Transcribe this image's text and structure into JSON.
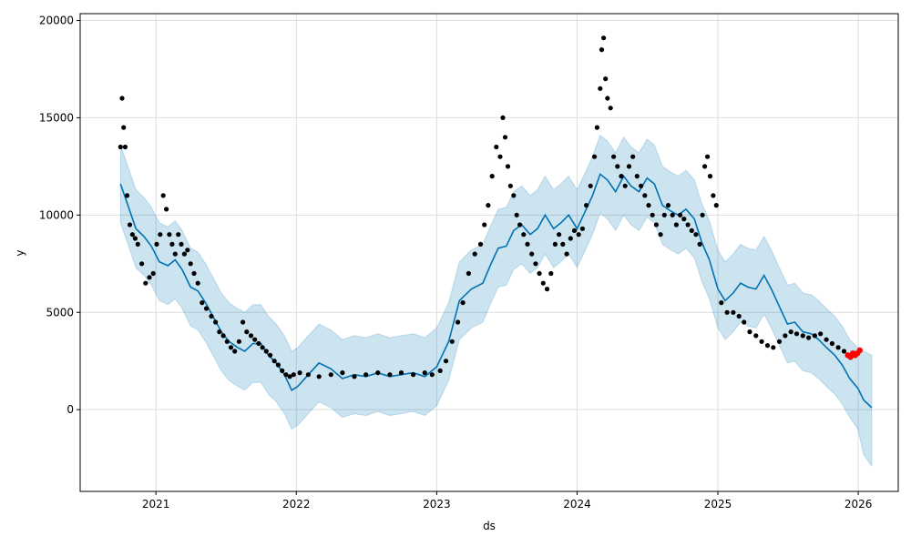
{
  "chart_data": {
    "type": "scatter",
    "title": "",
    "xlabel": "ds",
    "ylabel": "y",
    "xlim": [
      "2020-06-18",
      "2026-04-15"
    ],
    "ylim": [
      -4200,
      20350
    ],
    "grid": true,
    "x_ticks": [
      "2021-01-01",
      "2022-01-01",
      "2023-01-01",
      "2024-01-01",
      "2025-01-01",
      "2026-01-01"
    ],
    "x_tick_labels": [
      "2021",
      "2022",
      "2023",
      "2024",
      "2025",
      "2026"
    ],
    "y_ticks": [
      0,
      5000,
      10000,
      15000,
      20000
    ],
    "y_tick_labels": [
      "0",
      "5000",
      "10000",
      "15000",
      "20000"
    ],
    "colors": {
      "observed": "#000000",
      "recent": "#ff0000",
      "forecast_line": "#0072B2",
      "uncertainty_band": "#0072B2",
      "grid": "#dddddd"
    },
    "series": [
      {
        "role": "forecast",
        "x": [
          "2020-10-01",
          "2020-10-20",
          "2020-11-10",
          "2020-12-01",
          "2020-12-20",
          "2021-01-10",
          "2021-02-01",
          "2021-02-20",
          "2021-03-10",
          "2021-04-01",
          "2021-04-20",
          "2021-05-10",
          "2021-06-01",
          "2021-06-20",
          "2021-07-10",
          "2021-08-01",
          "2021-08-20",
          "2021-09-10",
          "2021-10-01",
          "2021-10-20",
          "2021-11-10",
          "2021-12-01",
          "2021-12-20",
          "2022-01-05",
          "2022-02-01",
          "2022-03-01",
          "2022-04-01",
          "2022-05-01",
          "2022-06-01",
          "2022-07-01",
          "2022-08-01",
          "2022-09-01",
          "2022-10-01",
          "2022-11-01",
          "2022-12-01",
          "2023-01-01",
          "2023-02-01",
          "2023-03-01",
          "2023-04-01",
          "2023-05-01",
          "2023-05-20",
          "2023-06-10",
          "2023-07-01",
          "2023-07-20",
          "2023-08-10",
          "2023-09-01",
          "2023-09-20",
          "2023-10-10",
          "2023-11-01",
          "2023-11-20",
          "2023-12-10",
          "2024-01-01",
          "2024-01-20",
          "2024-02-10",
          "2024-03-01",
          "2024-03-20",
          "2024-04-10",
          "2024-05-01",
          "2024-05-20",
          "2024-06-10",
          "2024-07-01",
          "2024-07-20",
          "2024-08-10",
          "2024-09-01",
          "2024-09-20",
          "2024-10-10",
          "2024-11-01",
          "2024-11-20",
          "2024-12-10",
          "2025-01-01",
          "2025-01-20",
          "2025-02-10",
          "2025-03-01",
          "2025-03-20",
          "2025-04-10",
          "2025-05-01",
          "2025-05-20",
          "2025-06-10",
          "2025-07-01",
          "2025-07-20",
          "2025-08-10",
          "2025-09-01",
          "2025-09-20",
          "2025-10-10",
          "2025-11-01",
          "2025-11-20",
          "2025-12-10",
          "2025-12-31",
          "2026-01-15",
          "2026-02-05"
        ],
        "y": [
          11600,
          10500,
          9300,
          8900,
          8400,
          7600,
          7400,
          7700,
          7200,
          6300,
          6100,
          5500,
          4700,
          4000,
          3500,
          3200,
          3000,
          3400,
          3400,
          2800,
          2400,
          1800,
          1000,
          1200,
          1800,
          2400,
          2100,
          1600,
          1800,
          1700,
          1900,
          1700,
          1800,
          1900,
          1700,
          2200,
          3500,
          5600,
          6200,
          6500,
          7400,
          8300,
          8400,
          9200,
          9500,
          9000,
          9300,
          10000,
          9300,
          9600,
          10000,
          9300,
          10100,
          11000,
          12100,
          11800,
          11200,
          12000,
          11500,
          11200,
          11900,
          11600,
          10500,
          10200,
          10000,
          10300,
          9800,
          8600,
          7700,
          6200,
          5600,
          6000,
          6500,
          6300,
          6200,
          6900,
          6200,
          5300,
          4400,
          4500,
          4000,
          3900,
          3600,
          3200,
          2800,
          2300,
          1600,
          1100,
          500,
          100
        ]
      },
      {
        "role": "uncertainty_band",
        "x": [
          "2020-10-01",
          "2020-10-20",
          "2020-11-10",
          "2020-12-01",
          "2020-12-20",
          "2021-01-10",
          "2021-02-01",
          "2021-02-20",
          "2021-03-10",
          "2021-04-01",
          "2021-04-20",
          "2021-05-10",
          "2021-06-01",
          "2021-06-20",
          "2021-07-10",
          "2021-08-01",
          "2021-08-20",
          "2021-09-10",
          "2021-10-01",
          "2021-10-20",
          "2021-11-10",
          "2021-12-01",
          "2021-12-20",
          "2022-01-05",
          "2022-02-01",
          "2022-03-01",
          "2022-04-01",
          "2022-05-01",
          "2022-06-01",
          "2022-07-01",
          "2022-08-01",
          "2022-09-01",
          "2022-10-01",
          "2022-11-01",
          "2022-12-01",
          "2023-01-01",
          "2023-02-01",
          "2023-03-01",
          "2023-04-01",
          "2023-05-01",
          "2023-05-20",
          "2023-06-10",
          "2023-07-01",
          "2023-07-20",
          "2023-08-10",
          "2023-09-01",
          "2023-09-20",
          "2023-10-10",
          "2023-11-01",
          "2023-11-20",
          "2023-12-10",
          "2024-01-01",
          "2024-01-20",
          "2024-02-10",
          "2024-03-01",
          "2024-03-20",
          "2024-04-10",
          "2024-05-01",
          "2024-05-20",
          "2024-06-10",
          "2024-07-01",
          "2024-07-20",
          "2024-08-10",
          "2024-09-01",
          "2024-09-20",
          "2024-10-10",
          "2024-11-01",
          "2024-11-20",
          "2024-12-10",
          "2025-01-01",
          "2025-01-20",
          "2025-02-10",
          "2025-03-01",
          "2025-03-20",
          "2025-04-10",
          "2025-05-01",
          "2025-05-20",
          "2025-06-10",
          "2025-07-01",
          "2025-07-20",
          "2025-08-10",
          "2025-09-01",
          "2025-09-20",
          "2025-10-10",
          "2025-11-01",
          "2025-11-20",
          "2025-12-10",
          "2025-12-31",
          "2026-01-15",
          "2026-02-05"
        ],
        "lower": [
          9600,
          8500,
          7300,
          6900,
          6400,
          5600,
          5400,
          5700,
          5200,
          4300,
          4100,
          3500,
          2700,
          2000,
          1500,
          1200,
          1000,
          1400,
          1400,
          800,
          400,
          -200,
          -1000,
          -800,
          -200,
          400,
          100,
          -400,
          -200,
          -300,
          -100,
          -300,
          -200,
          -100,
          -300,
          200,
          1500,
          3600,
          4200,
          4500,
          5400,
          6300,
          6400,
          7200,
          7500,
          7000,
          7300,
          8000,
          7300,
          7600,
          8000,
          7300,
          8100,
          9000,
          10100,
          9800,
          9200,
          10000,
          9500,
          9200,
          9900,
          9600,
          8500,
          8200,
          8000,
          8300,
          7800,
          6600,
          5700,
          4200,
          3600,
          4000,
          4500,
          4300,
          4200,
          4900,
          4200,
          3300,
          2400,
          2500,
          2000,
          1900,
          1600,
          1200,
          800,
          300,
          -400,
          -1000,
          -2300,
          -2900
        ],
        "upper": [
          13600,
          12500,
          11300,
          10900,
          10400,
          9600,
          9400,
          9700,
          9200,
          8300,
          8100,
          7500,
          6700,
          6000,
          5500,
          5200,
          5000,
          5400,
          5400,
          4800,
          4400,
          3800,
          3000,
          3200,
          3800,
          4400,
          4100,
          3600,
          3800,
          3700,
          3900,
          3700,
          3800,
          3900,
          3700,
          4200,
          5500,
          7600,
          8200,
          8500,
          9400,
          10300,
          10400,
          11200,
          11500,
          11000,
          11300,
          12000,
          11300,
          11600,
          12000,
          11300,
          12100,
          13000,
          14100,
          13800,
          13200,
          14000,
          13500,
          13200,
          13900,
          13600,
          12500,
          12200,
          12000,
          12300,
          11800,
          10600,
          9700,
          8200,
          7600,
          8000,
          8500,
          8300,
          8200,
          8900,
          8200,
          7300,
          6400,
          6500,
          6000,
          5900,
          5600,
          5200,
          4800,
          4300,
          3600,
          3200,
          3000,
          2800
        ]
      },
      {
        "role": "observed",
        "x": [
          "2020-10-01",
          "2020-10-05",
          "2020-10-09",
          "2020-10-13",
          "2020-10-18",
          "2020-10-25",
          "2020-11-01",
          "2020-11-08",
          "2020-11-15",
          "2020-11-25",
          "2020-12-05",
          "2020-12-15",
          "2020-12-25",
          "2021-01-03",
          "2021-01-12",
          "2021-01-20",
          "2021-01-28",
          "2021-02-05",
          "2021-02-12",
          "2021-02-20",
          "2021-02-28",
          "2021-03-08",
          "2021-03-16",
          "2021-03-24",
          "2021-04-01",
          "2021-04-10",
          "2021-04-20",
          "2021-05-01",
          "2021-05-12",
          "2021-05-25",
          "2021-06-05",
          "2021-06-15",
          "2021-06-25",
          "2021-07-05",
          "2021-07-15",
          "2021-07-25",
          "2021-08-05",
          "2021-08-15",
          "2021-08-25",
          "2021-09-05",
          "2021-09-15",
          "2021-09-25",
          "2021-10-05",
          "2021-10-15",
          "2021-10-25",
          "2021-11-05",
          "2021-11-15",
          "2021-11-25",
          "2021-12-05",
          "2021-12-15",
          "2021-12-25",
          "2022-01-10",
          "2022-02-01",
          "2022-03-01",
          "2022-04-01",
          "2022-05-01",
          "2022-06-01",
          "2022-07-01",
          "2022-08-01",
          "2022-09-01",
          "2022-10-01",
          "2022-11-01",
          "2022-12-01",
          "2022-12-20",
          "2023-01-10",
          "2023-01-25",
          "2023-02-10",
          "2023-02-25",
          "2023-03-10",
          "2023-03-25",
          "2023-04-10",
          "2023-04-25",
          "2023-05-05",
          "2023-05-15",
          "2023-05-25",
          "2023-06-05",
          "2023-06-15",
          "2023-06-22",
          "2023-06-28",
          "2023-07-05",
          "2023-07-12",
          "2023-07-20",
          "2023-07-28",
          "2023-08-05",
          "2023-08-15",
          "2023-08-25",
          "2023-09-05",
          "2023-09-15",
          "2023-09-25",
          "2023-10-05",
          "2023-10-15",
          "2023-10-25",
          "2023-11-05",
          "2023-11-15",
          "2023-11-25",
          "2023-12-05",
          "2023-12-15",
          "2023-12-25",
          "2024-01-05",
          "2024-01-15",
          "2024-01-25",
          "2024-02-05",
          "2024-02-15",
          "2024-02-22",
          "2024-03-01",
          "2024-03-05",
          "2024-03-10",
          "2024-03-15",
          "2024-03-20",
          "2024-03-28",
          "2024-04-05",
          "2024-04-15",
          "2024-04-25",
          "2024-05-05",
          "2024-05-15",
          "2024-05-25",
          "2024-06-05",
          "2024-06-15",
          "2024-06-25",
          "2024-07-05",
          "2024-07-15",
          "2024-07-25",
          "2024-08-05",
          "2024-08-15",
          "2024-08-25",
          "2024-09-05",
          "2024-09-15",
          "2024-09-25",
          "2024-10-05",
          "2024-10-15",
          "2024-10-25",
          "2024-11-05",
          "2024-11-15",
          "2024-11-22",
          "2024-11-28",
          "2024-12-05",
          "2024-12-12",
          "2024-12-20",
          "2024-12-28",
          "2025-01-10",
          "2025-01-25",
          "2025-02-10",
          "2025-02-25",
          "2025-03-10",
          "2025-03-25",
          "2025-04-10",
          "2025-04-25",
          "2025-05-10",
          "2025-05-25",
          "2025-06-10",
          "2025-06-25",
          "2025-07-10",
          "2025-07-25",
          "2025-08-10",
          "2025-08-25",
          "2025-09-10",
          "2025-09-25",
          "2025-10-10",
          "2025-10-25",
          "2025-11-10",
          "2025-11-25"
        ],
        "y": [
          13500,
          16000,
          14500,
          13500,
          11000,
          9500,
          9000,
          8800,
          8500,
          7500,
          6500,
          6800,
          7000,
          8500,
          9000,
          11000,
          10300,
          9000,
          8500,
          8000,
          9000,
          8500,
          8000,
          8200,
          7500,
          7000,
          6500,
          5500,
          5200,
          4800,
          4500,
          4000,
          3800,
          3500,
          3200,
          3000,
          3500,
          4500,
          4000,
          3800,
          3600,
          3400,
          3200,
          3000,
          2800,
          2500,
          2300,
          2000,
          1800,
          1700,
          1800,
          1900,
          1800,
          1700,
          1800,
          1900,
          1700,
          1800,
          1900,
          1800,
          1900,
          1800,
          1900,
          1800,
          2000,
          2500,
          3500,
          4500,
          5500,
          7000,
          8000,
          8500,
          9500,
          10500,
          12000,
          13500,
          13000,
          15000,
          14000,
          12500,
          11500,
          11000,
          10000,
          9500,
          9000,
          8500,
          8000,
          7500,
          7000,
          6500,
          6200,
          7000,
          8500,
          9000,
          8500,
          8000,
          8800,
          9200,
          9000,
          9300,
          10500,
          11500,
          13000,
          14500,
          16500,
          18500,
          19100,
          17000,
          16000,
          15500,
          13000,
          12500,
          12000,
          11500,
          12500,
          13000,
          12000,
          11500,
          11000,
          10500,
          10000,
          9500,
          9000,
          10000,
          10500,
          10000,
          9500,
          10000,
          9800,
          9500,
          9200,
          9000,
          8500,
          10000,
          12500,
          13000,
          12000,
          11000,
          10500,
          5500,
          5000,
          5000,
          4800,
          4500,
          4000,
          3800,
          3500,
          3300,
          3200,
          3500,
          3800,
          4000,
          3900,
          3800,
          3700,
          3800,
          3900,
          3600,
          3400,
          3200,
          3000
        ]
      },
      {
        "role": "recent",
        "x": [
          "2025-12-05",
          "2025-12-12",
          "2025-12-18",
          "2025-12-24",
          "2025-12-30",
          "2026-01-05"
        ],
        "y": [
          2800,
          2700,
          2900,
          2800,
          2900,
          3050
        ]
      }
    ]
  }
}
